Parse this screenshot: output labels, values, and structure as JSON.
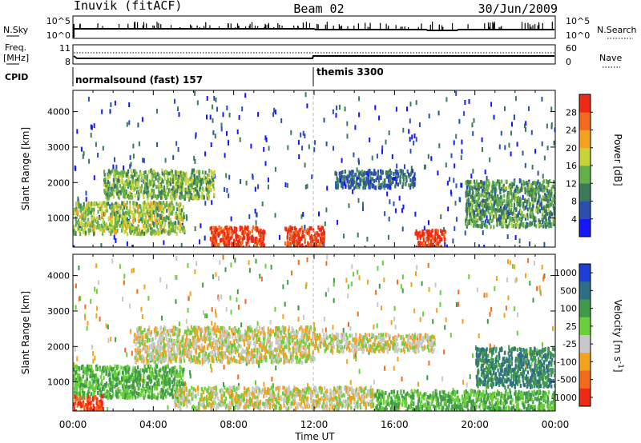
{
  "header": {
    "station": "Inuvik (fitACF)",
    "beam": "Beam 02",
    "date": "30/Jun/2009"
  },
  "strips": {
    "nsky_label": "N.Sky",
    "nsky_ticks": [
      "10^5",
      "10^0"
    ],
    "nsearch_label": "N.Search",
    "nsearch_ticks": [
      "10^5",
      "10^0"
    ],
    "freq_label": "Freq.",
    "freq_unit": "[MHz]",
    "freq_ticks": [
      "11",
      "8"
    ],
    "nave_label": "Nave",
    "nave_ticks": [
      "60",
      "0"
    ],
    "cpid_label": "CPID",
    "cpid_segments": [
      {
        "label": "normalsound (fast) 157",
        "start": 0,
        "end": 12
      },
      {
        "label": "themis 3300",
        "start": 12,
        "end": 24
      }
    ]
  },
  "x_axis": {
    "label": "Time UT",
    "ticks": [
      "00:00",
      "04:00",
      "08:00",
      "12:00",
      "16:00",
      "20:00",
      "00:00"
    ]
  },
  "chart_data": [
    {
      "type": "heatmap",
      "title": "",
      "xlabel": "Time UT",
      "ylabel": "Slant Range [km]",
      "xlim": [
        0,
        24
      ],
      "ylim": [
        180,
        4600
      ],
      "yticks": [
        "1000",
        "2000",
        "3000",
        "4000"
      ],
      "colorbar": {
        "label": "Power [dB]",
        "range": [
          0,
          32
        ],
        "ticks": [
          "4",
          "8",
          "12",
          "16",
          "20",
          "24",
          "28"
        ]
      },
      "colors": [
        "#1515ff",
        "#2a4fb0",
        "#3c7a5c",
        "#62b04a",
        "#c8d23a",
        "#f4a21c",
        "#f26a1a",
        "#ee2a14"
      ],
      "regions": [
        {
          "t0": 0.0,
          "t1": 5.5,
          "r0": 600,
          "r1": 1500,
          "level": 16
        },
        {
          "t0": 1.5,
          "t1": 7.0,
          "r0": 1600,
          "r1": 2400,
          "level": 14
        },
        {
          "t0": 6.8,
          "t1": 9.5,
          "r0": 200,
          "r1": 800,
          "level": 30
        },
        {
          "t0": 10.5,
          "t1": 12.5,
          "r0": 200,
          "r1": 800,
          "level": 30
        },
        {
          "t0": 13.0,
          "t1": 17.0,
          "r0": 1900,
          "r1": 2400,
          "level": 8
        },
        {
          "t0": 17.0,
          "t1": 18.5,
          "r0": 200,
          "r1": 700,
          "level": 30
        },
        {
          "t0": 19.5,
          "t1": 24.0,
          "r0": 800,
          "r1": 2100,
          "level": 12
        }
      ]
    },
    {
      "type": "heatmap",
      "title": "",
      "xlabel": "Time UT",
      "ylabel": "Slant Range [km]",
      "xlim": [
        0,
        24
      ],
      "ylim": [
        180,
        4600
      ],
      "yticks": [
        "1000",
        "2000",
        "3000",
        "4000"
      ],
      "colorbar": {
        "label": "Velocity [m s^-1]",
        "ticks": [
          "1000",
          "500",
          "100",
          "25",
          "-25",
          "-100",
          "-500",
          "-1000"
        ]
      },
      "colors": [
        "#1a3fd6",
        "#2f6f86",
        "#3f9a4a",
        "#6ad03a",
        "#c8c8c8",
        "#f4a21c",
        "#f26a1a",
        "#ee2a14"
      ],
      "regions": [
        {
          "t0": 0.0,
          "t1": 5.5,
          "r0": 600,
          "r1": 1500,
          "level": 100
        },
        {
          "t0": 3.0,
          "t1": 12.0,
          "r0": 1600,
          "r1": 2600,
          "level": 0
        },
        {
          "t0": 0.0,
          "t1": 1.5,
          "r0": 200,
          "r1": 650,
          "level": -500
        },
        {
          "t0": 5.0,
          "t1": 15.0,
          "r0": 300,
          "r1": 900,
          "level": 0
        },
        {
          "t0": 12.0,
          "t1": 18.0,
          "r0": 1900,
          "r1": 2400,
          "level": 0
        },
        {
          "t0": 15.0,
          "t1": 24.0,
          "r0": 200,
          "r1": 800,
          "level": 100
        },
        {
          "t0": 20.0,
          "t1": 24.0,
          "r0": 900,
          "r1": 2000,
          "level": 500
        }
      ]
    }
  ]
}
